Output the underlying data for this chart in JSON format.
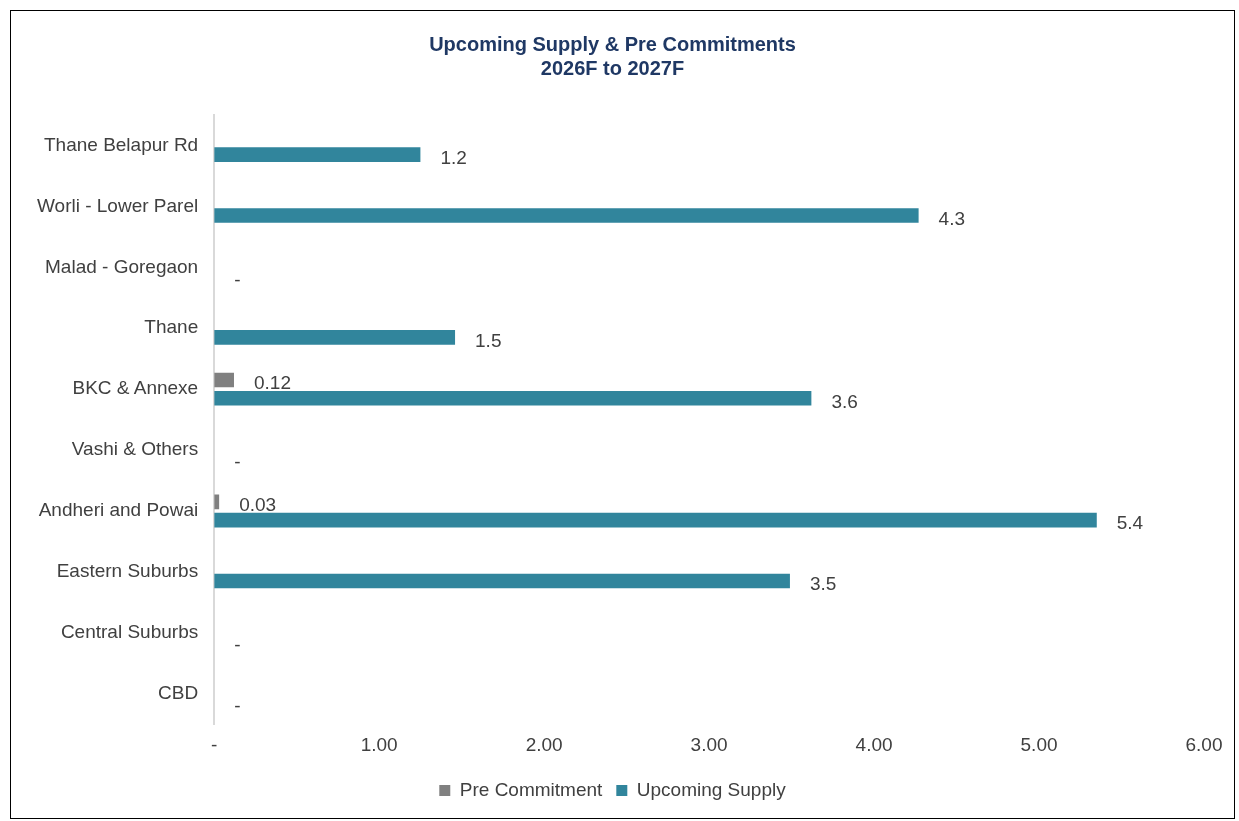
{
  "chart_data": {
    "type": "bar",
    "orientation": "horizontal",
    "title": "Upcoming Supply & Pre Commitments\n2026F to 2027F",
    "categories": [
      "Thane Belapur Rd",
      "Worli - Lower Parel",
      "Malad - Goregaon",
      "Thane",
      "BKC & Annexe",
      "Vashi & Others",
      "Andheri and Powai",
      "Eastern Suburbs",
      "Central Suburbs",
      "CBD"
    ],
    "series": [
      {
        "name": "Pre Commitment",
        "color": "#808080",
        "values": [
          null,
          null,
          null,
          null,
          0.12,
          null,
          0.03,
          null,
          null,
          null
        ],
        "value_labels": [
          null,
          null,
          null,
          null,
          "0.12",
          null,
          "0.03",
          null,
          null,
          null
        ]
      },
      {
        "name": "Upcoming Supply",
        "color": "#31859c",
        "values": [
          1.25,
          4.27,
          0,
          1.46,
          3.62,
          0,
          5.35,
          3.49,
          0,
          0
        ],
        "value_labels": [
          "1.2",
          "4.3",
          "-",
          "1.5",
          "3.6",
          "-",
          "5.4",
          "3.5",
          "-",
          "-"
        ]
      }
    ],
    "xlim": [
      0,
      6
    ],
    "xticks": [
      {
        "value": 0,
        "label": "-"
      },
      {
        "value": 1,
        "label": "1.00"
      },
      {
        "value": 2,
        "label": "2.00"
      },
      {
        "value": 3,
        "label": "3.00"
      },
      {
        "value": 4,
        "label": "4.00"
      },
      {
        "value": 5,
        "label": "5.00"
      },
      {
        "value": 6,
        "label": "6.00"
      }
    ],
    "grid": false,
    "legend": "bottom"
  }
}
